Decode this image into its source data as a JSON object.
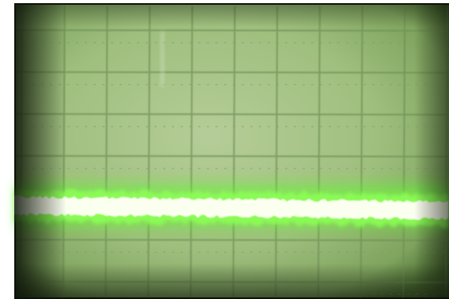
{
  "scene": {
    "subject": "oscilloscope-screen",
    "graticule": {
      "major_divisions_x": 10,
      "major_divisions_y": 6
    },
    "colors": {
      "bezel": "#0c1208",
      "screen_glow": "#a7c785",
      "graticule_line": "#6f8f55",
      "trace_core": "#fbfff0",
      "trace_glow": "#5cff26"
    },
    "trace": {
      "type": "flat-line-with-noise",
      "level_fraction_from_top": 0.55
    }
  }
}
